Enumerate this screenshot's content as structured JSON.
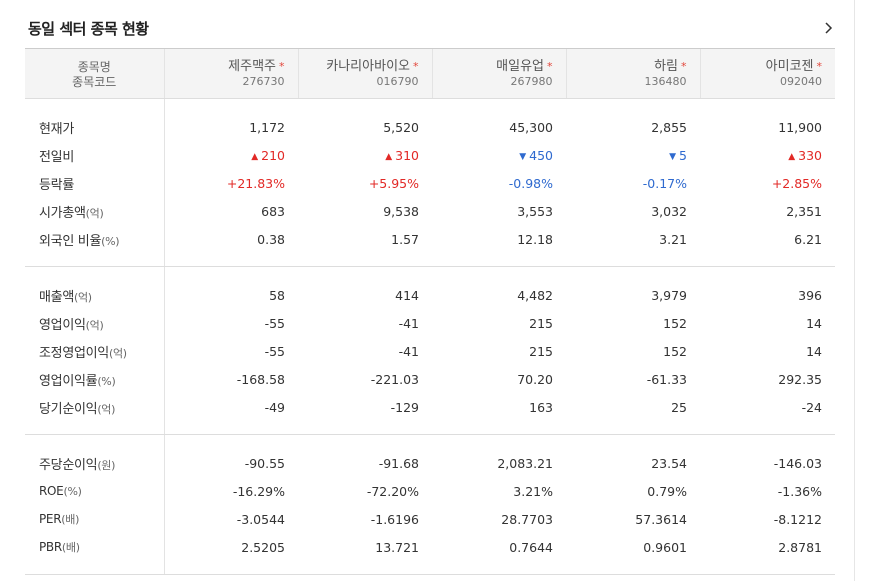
{
  "title": "동일 섹터 종목 현황",
  "header": {
    "label_name": "종목명",
    "label_code": "종목코드",
    "stocks": [
      {
        "name": "제주맥주",
        "code": "276730",
        "star": "*"
      },
      {
        "name": "카나리아바이오",
        "code": "016790",
        "star": "*"
      },
      {
        "name": "매일유업",
        "code": "267980",
        "star": "*"
      },
      {
        "name": "하림",
        "code": "136480",
        "star": "*"
      },
      {
        "name": "아미코젠",
        "code": "092040",
        "star": "*"
      }
    ]
  },
  "colors": {
    "up": "#e22926",
    "down": "#2f6acf"
  },
  "groups": [
    [
      {
        "label": "현재가",
        "unit": "",
        "values": [
          "1,172",
          "5,520",
          "45,300",
          "2,855",
          "11,900"
        ]
      },
      {
        "label": "전일비",
        "unit": "",
        "values": [
          "210",
          "310",
          "450",
          "5",
          "330"
        ],
        "dirs": [
          "up",
          "up",
          "down",
          "down",
          "up"
        ],
        "arrows": [
          "▲",
          "▲",
          "▼",
          "▼",
          "▲"
        ]
      },
      {
        "label": "등락률",
        "unit": "",
        "values": [
          "+21.83%",
          "+5.95%",
          "-0.98%",
          "-0.17%",
          "+2.85%"
        ],
        "dirs": [
          "up",
          "up",
          "down",
          "down",
          "up"
        ]
      },
      {
        "label": "시가총액",
        "unit": "(억)",
        "values": [
          "683",
          "9,538",
          "3,553",
          "3,032",
          "2,351"
        ]
      },
      {
        "label": "외국인 비율",
        "unit": "(%)",
        "values": [
          "0.38",
          "1.57",
          "12.18",
          "3.21",
          "6.21"
        ]
      }
    ],
    [
      {
        "label": "매출액",
        "unit": "(억)",
        "values": [
          "58",
          "414",
          "4,482",
          "3,979",
          "396"
        ]
      },
      {
        "label": "영업이익",
        "unit": "(억)",
        "values": [
          "-55",
          "-41",
          "215",
          "152",
          "14"
        ]
      },
      {
        "label": "조정영업이익",
        "unit": "(억)",
        "values": [
          "-55",
          "-41",
          "215",
          "152",
          "14"
        ]
      },
      {
        "label": "영업이익률",
        "unit": "(%)",
        "values": [
          "-168.58",
          "-221.03",
          "70.20",
          "-61.33",
          "292.35"
        ]
      },
      {
        "label": "당기순이익",
        "unit": "(억)",
        "values": [
          "-49",
          "-129",
          "163",
          "25",
          "-24"
        ]
      }
    ],
    [
      {
        "label": "주당순이익",
        "unit": "(원)",
        "values": [
          "-90.55",
          "-91.68",
          "2,083.21",
          "23.54",
          "-146.03"
        ]
      },
      {
        "label": "ROE",
        "unit": "(%)",
        "values": [
          "-16.29%",
          "-72.20%",
          "3.21%",
          "0.79%",
          "-1.36%"
        ]
      },
      {
        "label": "PER",
        "unit": "(배)",
        "values": [
          "-3.0544",
          "-1.6196",
          "28.7703",
          "57.3614",
          "-8.1212"
        ]
      },
      {
        "label": "PBR",
        "unit": "(배)",
        "values": [
          "2.5205",
          "13.721",
          "0.7644",
          "0.9601",
          "2.8781"
        ]
      }
    ]
  ]
}
